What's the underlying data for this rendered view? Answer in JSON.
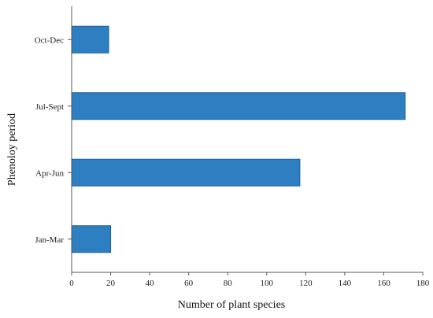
{
  "chart_data": {
    "type": "bar",
    "orientation": "horizontal",
    "categories": [
      "Jan-Mar",
      "Apr-Jun",
      "Jul-Sept",
      "Oct-Dec"
    ],
    "values": [
      20,
      117,
      171,
      19
    ],
    "title": "",
    "xlabel": "Number of plant species",
    "ylabel": "Phenoloy period",
    "xlim": [
      0,
      180
    ],
    "xticks": [
      0,
      20,
      40,
      60,
      80,
      100,
      120,
      140,
      160,
      180
    ],
    "grid": false,
    "bar_color": "#2e7fc2",
    "bar_edge_color": "#1f5f99"
  }
}
